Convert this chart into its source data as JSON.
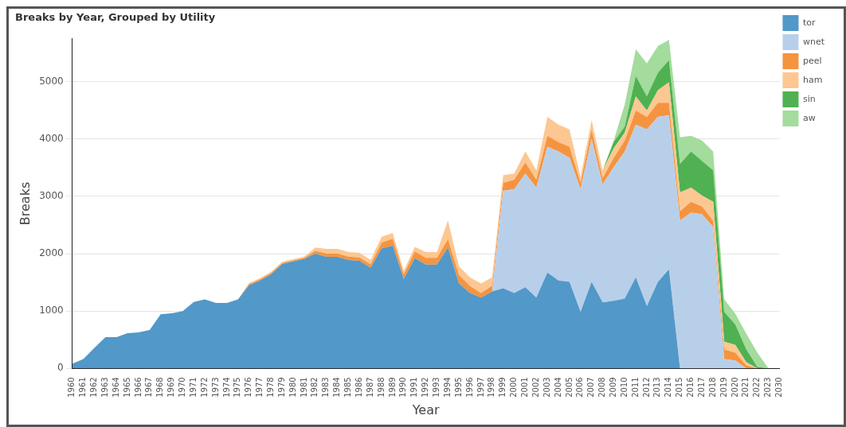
{
  "chart_data": {
    "type": "area",
    "title": "Breaks by Year, Grouped by Utility",
    "xlabel": "Year",
    "ylabel": "Breaks",
    "stacked": true,
    "grid": "y",
    "legend": "top right",
    "ylim": [
      0,
      5750
    ],
    "yticks": [
      0,
      1000,
      2000,
      3000,
      4000,
      5000
    ],
    "categories": [
      "1960",
      "1961",
      "1962",
      "1963",
      "1964",
      "1965",
      "1966",
      "1967",
      "1968",
      "1969",
      "1970",
      "1971",
      "1972",
      "1973",
      "1974",
      "1975",
      "1976",
      "1977",
      "1978",
      "1979",
      "1980",
      "1981",
      "1982",
      "1983",
      "1984",
      "1985",
      "1986",
      "1987",
      "1988",
      "1989",
      "1990",
      "1991",
      "1992",
      "1993",
      "1994",
      "1995",
      "1996",
      "1997",
      "1998",
      "1999",
      "2000",
      "2001",
      "2002",
      "2003",
      "2004",
      "2005",
      "2006",
      "2007",
      "2008",
      "2009",
      "2010",
      "2011",
      "2012",
      "2013",
      "2014",
      "2015",
      "2016",
      "2017",
      "2018",
      "2019",
      "2020",
      "2021",
      "2022",
      "2023",
      "2030"
    ],
    "series": [
      {
        "name": "tor",
        "color": "#5298c8",
        "values": [
          82,
          165,
          360,
          545,
          545,
          615,
          630,
          670,
          945,
          960,
          1000,
          1160,
          1205,
          1140,
          1140,
          1205,
          1450,
          1535,
          1645,
          1820,
          1865,
          1910,
          2000,
          1945,
          1945,
          1890,
          1875,
          1755,
          2095,
          2140,
          1560,
          1920,
          1810,
          1810,
          2110,
          1480,
          1315,
          1235,
          1343,
          1398,
          1316,
          1414,
          1234,
          1672,
          1535,
          1508,
          987,
          1508,
          1151,
          1179,
          1217,
          1590,
          1086,
          1508,
          1727,
          0,
          0,
          0,
          0,
          0,
          0,
          0,
          0,
          0,
          0
        ]
      },
      {
        "name": "wnet",
        "color": "#b8cfea",
        "values": [
          0,
          0,
          0,
          0,
          0,
          0,
          0,
          0,
          0,
          0,
          0,
          0,
          0,
          0,
          0,
          0,
          0,
          0,
          0,
          0,
          0,
          0,
          0,
          0,
          0,
          0,
          0,
          0,
          0,
          0,
          0,
          0,
          0,
          0,
          0,
          0,
          0,
          0,
          0,
          1700,
          1809,
          1985,
          1918,
          2193,
          2248,
          2165,
          2138,
          2494,
          2056,
          2330,
          2566,
          2659,
          3081,
          2878,
          2686,
          2577,
          2714,
          2686,
          2467,
          164,
          137,
          0,
          0,
          0,
          0
        ]
      },
      {
        "name": "peel",
        "color": "#f59440",
        "values": [
          0,
          0,
          0,
          0,
          0,
          0,
          0,
          0,
          0,
          0,
          0,
          0,
          0,
          0,
          0,
          0,
          20,
          20,
          20,
          20,
          20,
          20,
          50,
          60,
          60,
          60,
          60,
          60,
          100,
          120,
          80,
          120,
          120,
          120,
          140,
          150,
          120,
          80,
          100,
          137,
          164,
          192,
          137,
          192,
          164,
          192,
          110,
          165,
          110,
          164,
          192,
          247,
          219,
          246,
          219,
          164,
          192,
          137,
          110,
          165,
          137,
          55,
          0,
          0,
          0
        ]
      },
      {
        "name": "ham",
        "color": "#fdc791",
        "values": [
          0,
          0,
          0,
          0,
          0,
          0,
          0,
          0,
          0,
          0,
          0,
          0,
          0,
          0,
          0,
          0,
          20,
          20,
          20,
          20,
          20,
          20,
          60,
          80,
          80,
          80,
          80,
          80,
          100,
          100,
          60,
          80,
          100,
          100,
          330,
          150,
          150,
          165,
          147,
          137,
          110,
          192,
          165,
          329,
          302,
          302,
          109,
          164,
          137,
          165,
          137,
          246,
          110,
          219,
          357,
          329,
          246,
          192,
          329,
          137,
          137,
          55,
          0,
          0,
          0
        ]
      },
      {
        "name": "sin",
        "color": "#4fb151",
        "values": [
          0,
          0,
          0,
          0,
          0,
          0,
          0,
          0,
          0,
          0,
          0,
          0,
          0,
          0,
          0,
          0,
          0,
          0,
          0,
          0,
          0,
          0,
          0,
          0,
          0,
          0,
          0,
          0,
          0,
          0,
          0,
          0,
          0,
          0,
          0,
          0,
          0,
          0,
          0,
          0,
          0,
          0,
          0,
          0,
          0,
          0,
          0,
          0,
          0,
          110,
          109,
          357,
          246,
          303,
          384,
          494,
          631,
          603,
          548,
          521,
          357,
          219,
          27,
          0,
          0
        ]
      },
      {
        "name": "aw",
        "color": "#a3dc9c",
        "values": [
          0,
          0,
          0,
          0,
          0,
          0,
          0,
          0,
          0,
          0,
          0,
          0,
          0,
          0,
          0,
          0,
          0,
          0,
          0,
          0,
          0,
          0,
          0,
          0,
          0,
          0,
          0,
          0,
          0,
          0,
          0,
          0,
          0,
          0,
          0,
          0,
          0,
          0,
          0,
          0,
          0,
          0,
          0,
          0,
          0,
          0,
          0,
          0,
          0,
          27,
          384,
          466,
          576,
          466,
          356,
          466,
          274,
          357,
          329,
          219,
          191,
          274,
          247,
          0,
          0
        ]
      }
    ]
  }
}
